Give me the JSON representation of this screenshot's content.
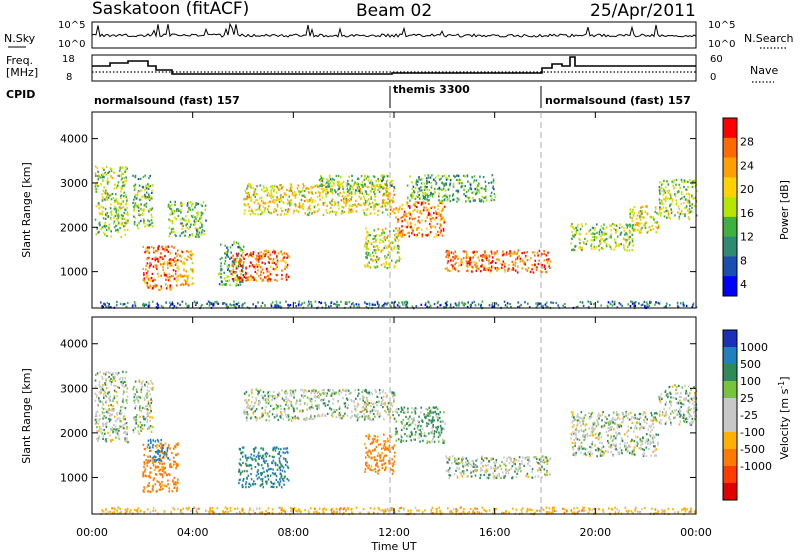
{
  "header": {
    "station": "Saskatoon (fitACF)",
    "beam": "Beam 02",
    "date": "25/Apr/2011"
  },
  "noise_panel": {
    "left_label": "N.Sky",
    "right_label": "N.Search",
    "left_ticks": [
      "10^5",
      "10^0"
    ],
    "right_ticks": [
      "10^5",
      "10^0"
    ]
  },
  "freq_panel": {
    "left_label_1": "Freq.",
    "left_label_2": "[MHz]",
    "left_ticks": [
      "18",
      "8"
    ],
    "right_label": "Nave",
    "right_ticks": [
      "60",
      "0"
    ]
  },
  "cpid": {
    "label": "CPID",
    "segments": [
      {
        "name": "normalsound (fast) 157",
        "start_hour": 0,
        "end_hour": 12
      },
      {
        "name": "themis 3300",
        "start_hour": 12,
        "end_hour": 18
      },
      {
        "name": "normalsound (fast) 157",
        "start_hour": 18,
        "end_hour": 24
      }
    ]
  },
  "power_panel": {
    "ylabel": "Slant Range [km]",
    "yticks": [
      "1000",
      "2000",
      "3000",
      "4000"
    ],
    "colorbar_label": "Power [dB]",
    "colorbar_ticks": [
      "28",
      "24",
      "20",
      "16",
      "12",
      "8",
      "4"
    ],
    "colorbar_colors": [
      "#ff0000",
      "#ff6a00",
      "#ff9f00",
      "#ffd200",
      "#b6e600",
      "#3fb13f",
      "#2f8a72",
      "#1a4fb0",
      "#0000ff"
    ]
  },
  "velocity_panel": {
    "ylabel": "Slant Range [km]",
    "yticks": [
      "1000",
      "2000",
      "3000",
      "4000"
    ],
    "colorbar_label": "Velocity [m s",
    "colorbar_label_sup": "-1",
    "colorbar_label_end": "]",
    "colorbar_ticks": [
      "1000",
      "500",
      "100",
      "25",
      "-25",
      "-100",
      "-500",
      "-1000"
    ],
    "colorbar_colors": [
      "#1b2fb8",
      "#1f7fbf",
      "#2e8b57",
      "#77c43b",
      "#c8c8c8",
      "#c8c8c8",
      "#ffb000",
      "#ff7a00",
      "#ff3b00",
      "#e00000"
    ]
  },
  "xaxis": {
    "label": "Time UT",
    "ticks": [
      "00:00",
      "04:00",
      "08:00",
      "12:00",
      "16:00",
      "20:00",
      "00:00"
    ]
  },
  "chart_data": {
    "type": "heatmap",
    "time_range_hours": [
      0,
      24
    ],
    "slant_range_km": [
      180,
      4600
    ],
    "power_blobs": [
      {
        "t": [
          0.1,
          1.4
        ],
        "r": [
          1800,
          3400
        ],
        "db": 14
      },
      {
        "t": [
          1.6,
          2.4
        ],
        "r": [
          2000,
          3200
        ],
        "db": 12
      },
      {
        "t": [
          2.0,
          3.3
        ],
        "r": [
          600,
          1600
        ],
        "db": 26
      },
      {
        "t": [
          3.3,
          4.0
        ],
        "r": [
          700,
          1500
        ],
        "db": 22
      },
      {
        "t": [
          3.0,
          4.5
        ],
        "r": [
          1800,
          2600
        ],
        "db": 12
      },
      {
        "t": [
          5.0,
          6.0
        ],
        "r": [
          700,
          1700
        ],
        "db": 10
      },
      {
        "t": [
          5.5,
          7.8
        ],
        "r": [
          800,
          1500
        ],
        "db": 26
      },
      {
        "t": [
          6.0,
          12.0
        ],
        "r": [
          2300,
          3000
        ],
        "db": 18
      },
      {
        "t": [
          9.0,
          12.0
        ],
        "r": [
          2800,
          3200
        ],
        "db": 12
      },
      {
        "t": [
          10.8,
          12.2
        ],
        "r": [
          1100,
          2000
        ],
        "db": 16
      },
      {
        "t": [
          12.0,
          14.0
        ],
        "r": [
          1800,
          2600
        ],
        "db": 24
      },
      {
        "t": [
          14.0,
          18.2
        ],
        "r": [
          1000,
          1500
        ],
        "db": 26
      },
      {
        "t": [
          12.5,
          16.0
        ],
        "r": [
          2600,
          3200
        ],
        "db": 10
      },
      {
        "t": [
          19.0,
          21.5
        ],
        "r": [
          1500,
          2100
        ],
        "db": 14
      },
      {
        "t": [
          21.3,
          22.5
        ],
        "r": [
          1900,
          2500
        ],
        "db": 18
      },
      {
        "t": [
          22.5,
          24.0
        ],
        "r": [
          2200,
          3100
        ],
        "db": 14
      },
      {
        "t": [
          0.3,
          24.0
        ],
        "r": [
          200,
          350
        ],
        "db": 6
      }
    ],
    "velocity_blobs": [
      {
        "t": [
          0.1,
          1.4
        ],
        "r": [
          1800,
          3400
        ],
        "v": 0
      },
      {
        "t": [
          1.6,
          2.4
        ],
        "r": [
          2000,
          3200
        ],
        "v": 0
      },
      {
        "t": [
          2.0,
          3.4
        ],
        "r": [
          700,
          1800
        ],
        "v": -400
      },
      {
        "t": [
          2.2,
          3.0
        ],
        "r": [
          1400,
          1900
        ],
        "v": 500
      },
      {
        "t": [
          5.8,
          7.8
        ],
        "r": [
          800,
          1700
        ],
        "v": 300
      },
      {
        "t": [
          6.0,
          12.0
        ],
        "r": [
          2300,
          3000
        ],
        "v": 0
      },
      {
        "t": [
          10.8,
          12.0
        ],
        "r": [
          1100,
          2000
        ],
        "v": -400
      },
      {
        "t": [
          12.0,
          14.0
        ],
        "r": [
          1800,
          2600
        ],
        "v": 80
      },
      {
        "t": [
          14.0,
          18.2
        ],
        "r": [
          1000,
          1500
        ],
        "v": 0
      },
      {
        "t": [
          19.0,
          22.5
        ],
        "r": [
          1500,
          2500
        ],
        "v": 0
      },
      {
        "t": [
          22.5,
          24.0
        ],
        "r": [
          2200,
          3100
        ],
        "v": 0
      },
      {
        "t": [
          0.3,
          24.0
        ],
        "r": [
          200,
          350
        ],
        "v": -200
      }
    ],
    "cpid_boundaries_hours": [
      12,
      18
    ]
  }
}
